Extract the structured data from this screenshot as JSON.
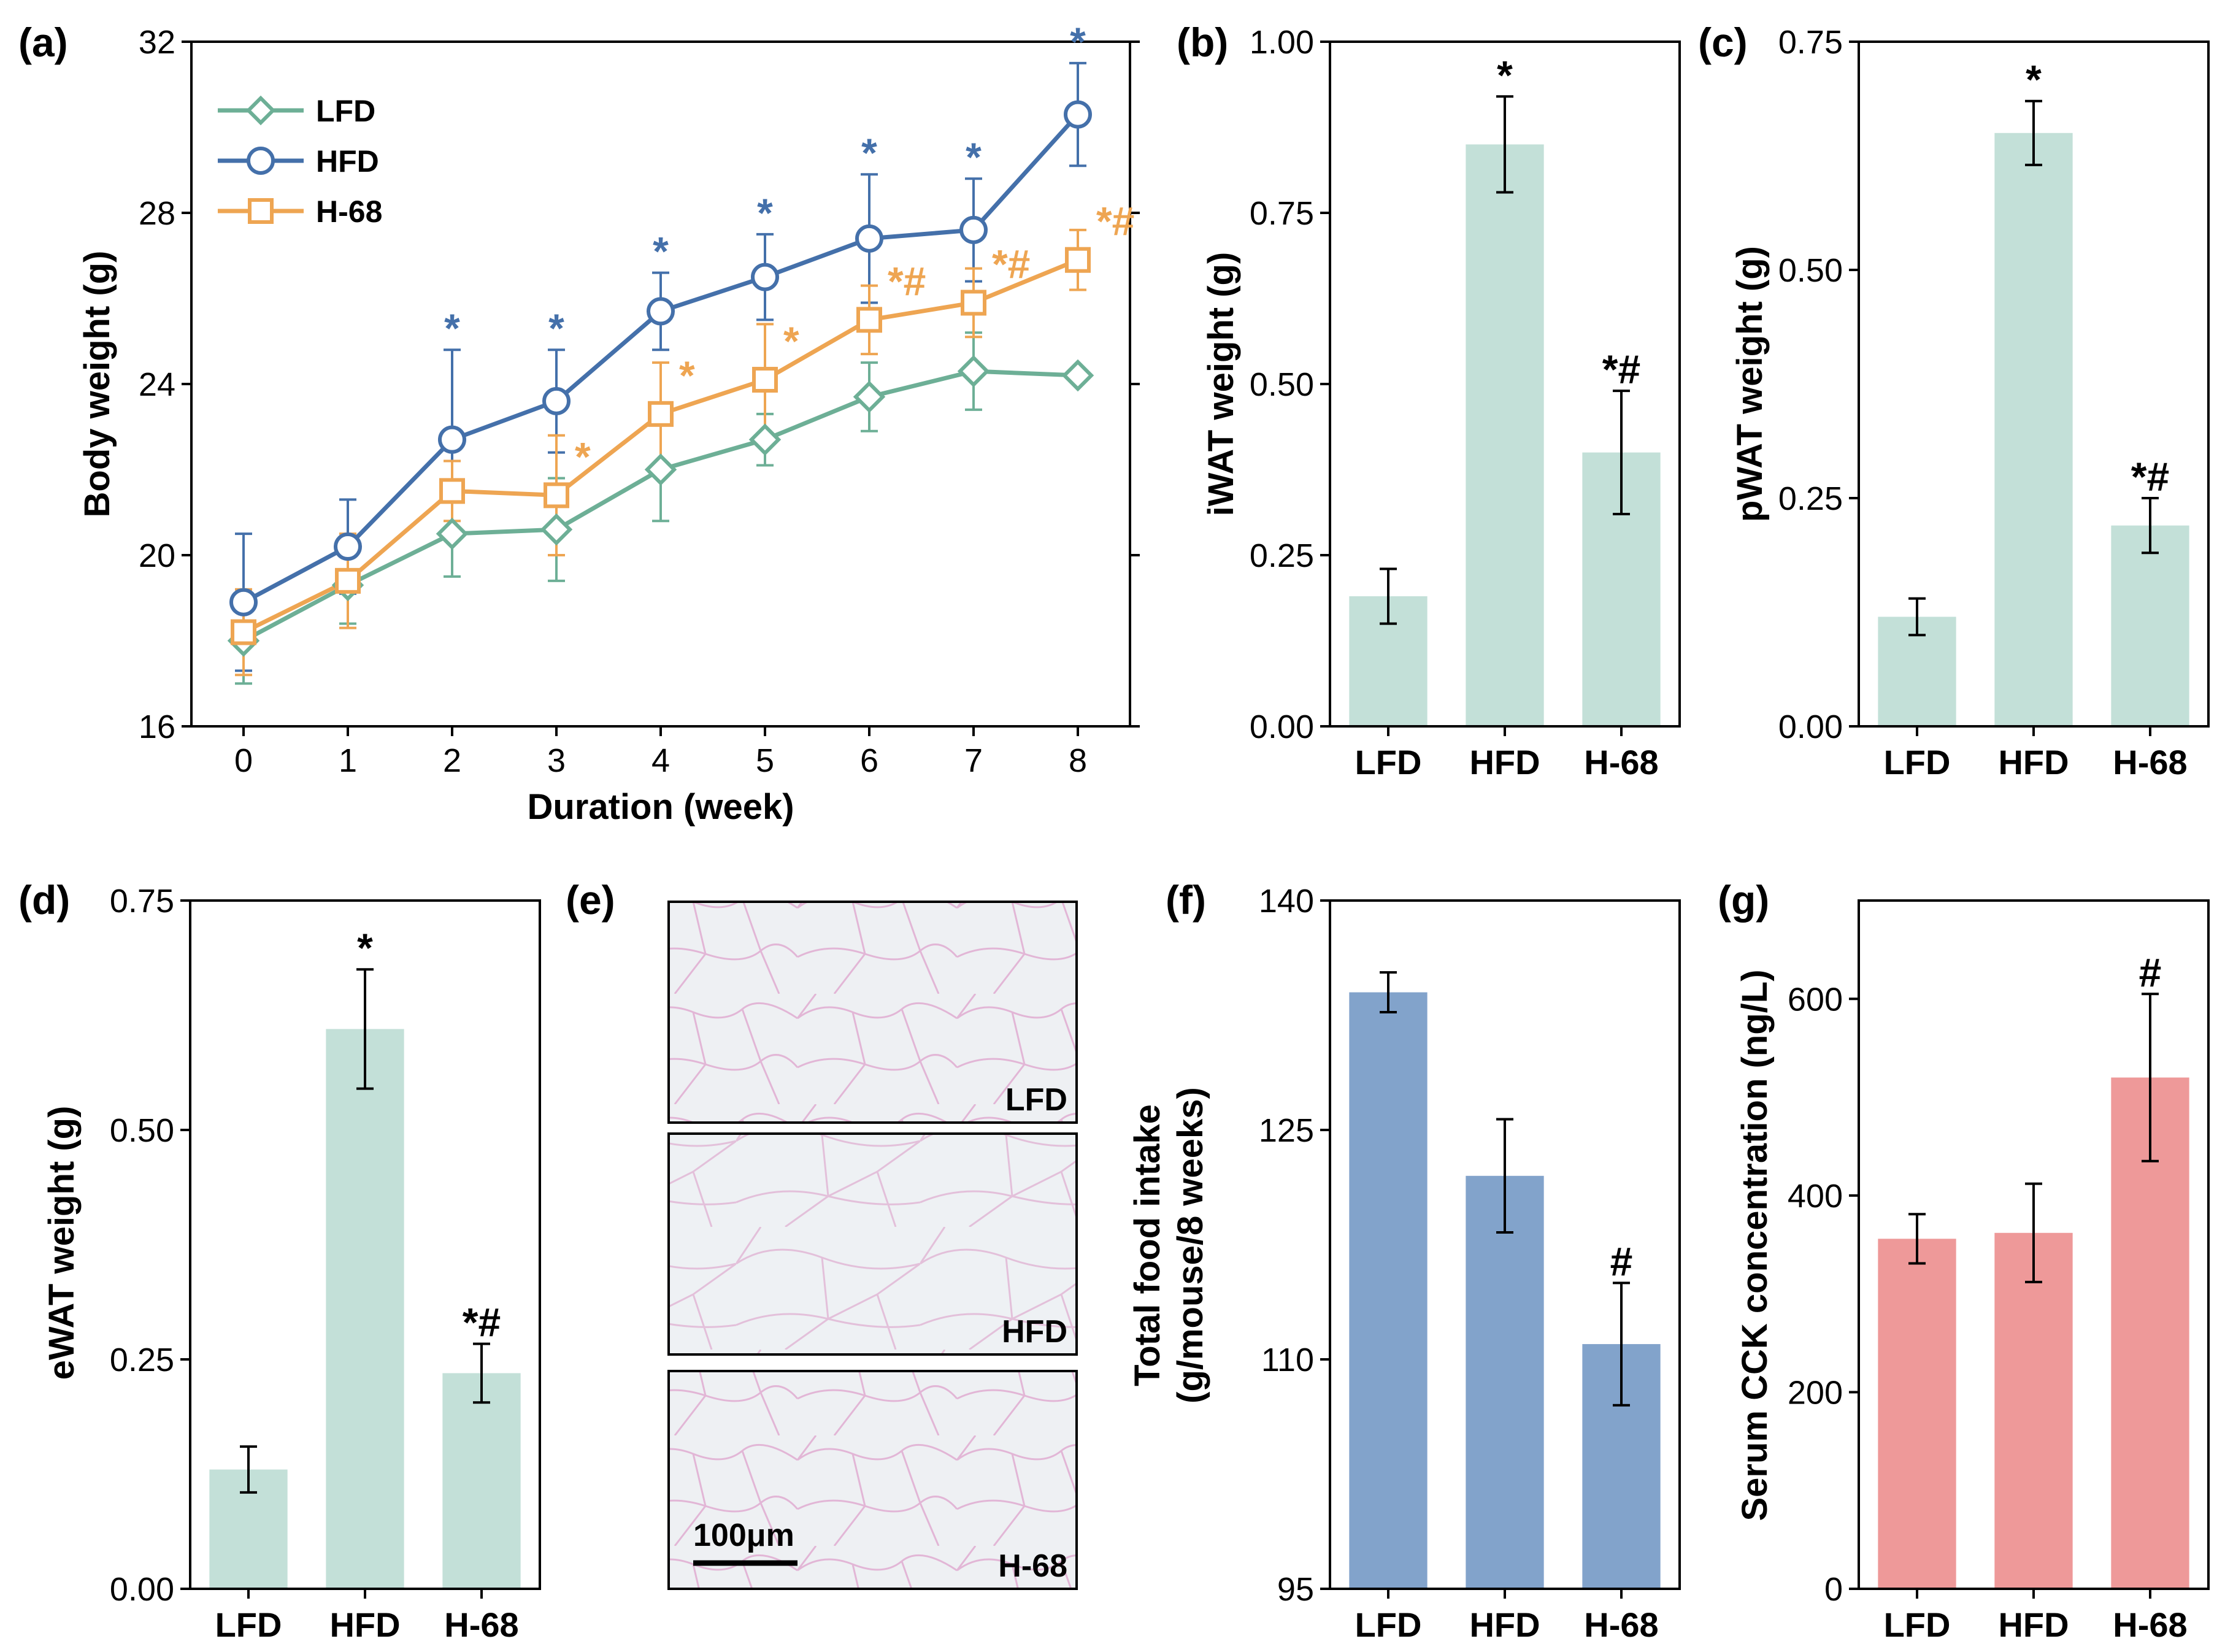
{
  "colors": {
    "lfd": "#6daf96",
    "hfd": "#4470aa",
    "h68": "#eea552",
    "bar_green": "#c3e0d8",
    "bar_blue": "#82a3cb",
    "bar_pink": "#ee9999"
  },
  "chart_data": [
    {
      "id": "a",
      "panel_label": "(a)",
      "type": "line",
      "xlabel": "Duration (week)",
      "ylabel": "Body weight (g)",
      "xlim": [
        -0.5,
        8.5
      ],
      "ylim": [
        16,
        32
      ],
      "xticks": [
        0,
        1,
        2,
        3,
        4,
        5,
        6,
        7,
        8
      ],
      "yticks": [
        16,
        20,
        24,
        28,
        32
      ],
      "legend_position": "top-left",
      "x": [
        0,
        1,
        2,
        3,
        4,
        5,
        6,
        7,
        8
      ],
      "series": [
        {
          "name": "LFD",
          "marker": "diamond",
          "color": "#6daf96",
          "values": [
            18.0,
            19.3,
            20.5,
            20.6,
            22.0,
            22.7,
            23.7,
            24.3,
            24.2
          ],
          "errors": [
            1.0,
            0.9,
            1.0,
            1.2,
            1.2,
            0.6,
            0.8,
            0.9,
            0.0
          ],
          "annotations": [
            "",
            "",
            "",
            "",
            "",
            "",
            "",
            "",
            ""
          ]
        },
        {
          "name": "HFD",
          "marker": "circle",
          "color": "#4470aa",
          "values": [
            18.9,
            20.2,
            22.7,
            23.6,
            25.7,
            26.5,
            27.4,
            27.6,
            30.3
          ],
          "errors": [
            1.6,
            1.1,
            2.1,
            1.2,
            0.9,
            1.0,
            1.5,
            1.2,
            1.2
          ],
          "annotations": [
            "",
            "",
            "*",
            "*",
            "*",
            "*",
            "*",
            "*",
            "*"
          ]
        },
        {
          "name": "H-68",
          "marker": "square",
          "color": "#eea552",
          "values": [
            18.2,
            19.4,
            21.5,
            21.4,
            23.3,
            24.1,
            25.5,
            25.9,
            26.9
          ],
          "errors": [
            1.0,
            1.1,
            0.7,
            1.4,
            1.2,
            1.3,
            0.8,
            0.8,
            0.7
          ],
          "annotations": [
            "",
            "",
            "",
            "*",
            "*",
            "*",
            "*#",
            "*#",
            "*#"
          ]
        }
      ]
    },
    {
      "id": "b",
      "panel_label": "(b)",
      "type": "bar",
      "ylabel": "iWAT weight (g)",
      "ylim": [
        0,
        1.0
      ],
      "yticks": [
        0,
        0.25,
        0.5,
        0.75,
        1.0
      ],
      "ytick_labels": [
        "0.00",
        "0.25",
        "0.50",
        "0.75",
        "1.00"
      ],
      "categories": [
        "LFD",
        "HFD",
        "H-68"
      ],
      "values": [
        0.19,
        0.85,
        0.4
      ],
      "errors": [
        0.04,
        0.07,
        0.09
      ],
      "annotations": [
        "",
        "*",
        "*#"
      ],
      "color": "#c3e0d8"
    },
    {
      "id": "c",
      "panel_label": "(c)",
      "type": "bar",
      "ylabel": "pWAT weight (g)",
      "ylim": [
        0,
        0.75
      ],
      "yticks": [
        0,
        0.25,
        0.5,
        0.75
      ],
      "ytick_labels": [
        "0.00",
        "0.25",
        "0.50",
        "0.75"
      ],
      "categories": [
        "LFD",
        "HFD",
        "H-68"
      ],
      "values": [
        0.12,
        0.65,
        0.22
      ],
      "errors": [
        0.02,
        0.035,
        0.03
      ],
      "annotations": [
        "",
        "*",
        "*#"
      ],
      "color": "#c3e0d8"
    },
    {
      "id": "d",
      "panel_label": "(d)",
      "type": "bar",
      "ylabel": "eWAT weight (g)",
      "ylim": [
        0,
        0.75
      ],
      "yticks": [
        0,
        0.25,
        0.5,
        0.75
      ],
      "ytick_labels": [
        "0.00",
        "0.25",
        "0.50",
        "0.75"
      ],
      "categories": [
        "LFD",
        "HFD",
        "H-68"
      ],
      "values": [
        0.13,
        0.61,
        0.235
      ],
      "errors": [
        0.025,
        0.065,
        0.032
      ],
      "annotations": [
        "",
        "*",
        "*#"
      ],
      "color": "#c3e0d8"
    },
    {
      "id": "f",
      "panel_label": "(f)",
      "type": "bar",
      "ylabel": "Total food intake",
      "ylabel2": "(g/mouse/8 weeks)",
      "ylim": [
        95,
        140
      ],
      "yticks": [
        95,
        110,
        125,
        140
      ],
      "ytick_labels": [
        "95",
        "110",
        "125",
        "140"
      ],
      "categories": [
        "LFD",
        "HFD",
        "H-68"
      ],
      "values": [
        134.0,
        122.0,
        111.0
      ],
      "errors": [
        1.3,
        3.7,
        4.0
      ],
      "annotations": [
        "",
        "",
        "#"
      ],
      "color": "#82a3cb"
    },
    {
      "id": "g",
      "panel_label": "(g)",
      "type": "bar",
      "ylabel": "Serum CCK concentration (ng/L)",
      "ylim": [
        0,
        700
      ],
      "yticks": [
        0,
        200,
        400,
        600
      ],
      "ytick_labels": [
        "0",
        "200",
        "400",
        "600"
      ],
      "categories": [
        "LFD",
        "HFD",
        "H-68"
      ],
      "values": [
        356,
        362,
        520
      ],
      "errors": [
        25,
        50,
        85
      ],
      "annotations": [
        "",
        "",
        "#"
      ],
      "color": "#ee9999"
    }
  ],
  "histology": {
    "panel_label": "(e)",
    "labels": [
      "LFD",
      "HFD",
      "H-68"
    ],
    "scale_bar_label": "100μm"
  }
}
